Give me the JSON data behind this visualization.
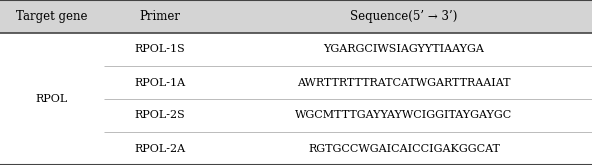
{
  "header": [
    "Target gene",
    "Primer",
    "Sequence(5’ → 3’)"
  ],
  "rows": [
    [
      "RPOL-1S",
      "YGARGCIWSIAGYYTIAAYGA"
    ],
    [
      "RPOL-1A",
      "AWRTTRTTTRATCATWGARTTRAAIAT"
    ],
    [
      "RPOL-2S",
      "WGCMTTTGAYYAYWCIGGITAYGAYGC"
    ],
    [
      "RPOL-2A",
      "RGTGCCWGAICAICCIGAKGGCAT"
    ]
  ],
  "gene_label": "RPOL",
  "header_bg": "#d4d4d4",
  "border_color": "#444444",
  "inner_line_color": "#bbbbbb",
  "font_size": 8.0,
  "header_font_size": 8.5,
  "figwidth": 5.92,
  "figheight": 1.65,
  "col_splits": [
    0.175,
    0.365
  ]
}
